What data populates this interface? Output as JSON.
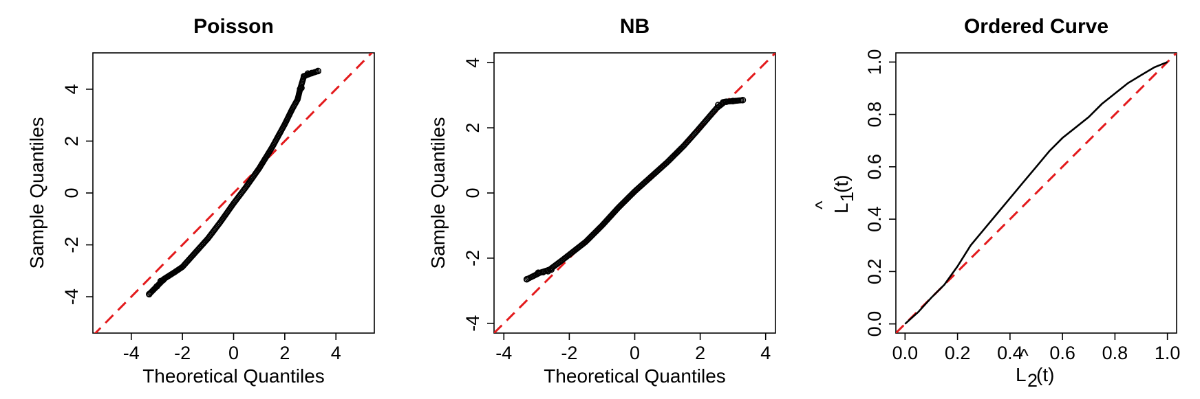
{
  "chart_data": [
    {
      "type": "scatter",
      "title": "Poisson",
      "xlabel": "Theoretical Quantiles",
      "ylabel": "Sample Quantiles",
      "xlim": [
        -5.5,
        5.5
      ],
      "ylim": [
        -5.4,
        5.4
      ],
      "xticks": [
        -4,
        -2,
        0,
        2,
        4
      ],
      "yticks": [
        -4,
        -2,
        0,
        2,
        4
      ],
      "xtick_labels": [
        "-4",
        "-2",
        "0",
        "2",
        "4"
      ],
      "ytick_labels": [
        "-4",
        "-2",
        "0",
        "2",
        "4"
      ],
      "reference_line": {
        "type": "identity",
        "color": "#e31a1c",
        "style": "dashed"
      },
      "qq_curve": [
        [
          -3.3,
          -3.9
        ],
        [
          -3.0,
          -3.6
        ],
        [
          -2.7,
          -3.3
        ],
        [
          -2.3,
          -3.05
        ],
        [
          -2.0,
          -2.85
        ],
        [
          -1.5,
          -2.3
        ],
        [
          -1.0,
          -1.75
        ],
        [
          -0.5,
          -1.1
        ],
        [
          0.0,
          -0.4
        ],
        [
          0.5,
          0.25
        ],
        [
          1.0,
          0.95
        ],
        [
          1.5,
          1.75
        ],
        [
          2.0,
          2.65
        ],
        [
          2.3,
          3.25
        ],
        [
          2.5,
          3.6
        ],
        [
          2.6,
          4.0
        ],
        [
          2.75,
          4.5
        ],
        [
          3.0,
          4.6
        ],
        [
          3.3,
          4.7
        ]
      ],
      "outlier_points": [
        [
          -3.3,
          -3.9
        ],
        [
          -3.0,
          -3.6
        ],
        [
          -2.85,
          -3.4
        ],
        [
          -2.75,
          -3.35
        ],
        [
          2.6,
          4.0
        ],
        [
          2.65,
          4.05
        ],
        [
          2.75,
          4.5
        ],
        [
          2.9,
          4.6
        ],
        [
          3.05,
          4.62
        ],
        [
          3.3,
          4.7
        ]
      ]
    },
    {
      "type": "scatter",
      "title": "NB",
      "xlabel": "Theoretical Quantiles",
      "ylabel": "Sample Quantiles",
      "xlim": [
        -4.3,
        4.3
      ],
      "ylim": [
        -4.3,
        4.3
      ],
      "xticks": [
        -4,
        -2,
        0,
        2,
        4
      ],
      "yticks": [
        -4,
        -2,
        0,
        2,
        4
      ],
      "xtick_labels": [
        "-4",
        "-2",
        "0",
        "2",
        "4"
      ],
      "ytick_labels": [
        "-4",
        "-2",
        "0",
        "2",
        "4"
      ],
      "reference_line": {
        "type": "identity",
        "color": "#e31a1c",
        "style": "dashed"
      },
      "qq_curve": [
        [
          -3.3,
          -2.65
        ],
        [
          -2.9,
          -2.45
        ],
        [
          -2.6,
          -2.35
        ],
        [
          -2.2,
          -2.05
        ],
        [
          -1.5,
          -1.5
        ],
        [
          -1.0,
          -1.0
        ],
        [
          -0.5,
          -0.45
        ],
        [
          0.0,
          0.05
        ],
        [
          0.5,
          0.5
        ],
        [
          1.0,
          0.95
        ],
        [
          1.5,
          1.45
        ],
        [
          1.9,
          1.9
        ],
        [
          2.2,
          2.25
        ],
        [
          2.5,
          2.6
        ],
        [
          2.75,
          2.8
        ],
        [
          3.0,
          2.82
        ],
        [
          3.3,
          2.85
        ]
      ],
      "outlier_points": [
        [
          -3.3,
          -2.65
        ],
        [
          -2.95,
          -2.45
        ],
        [
          -2.8,
          -2.43
        ],
        [
          -2.65,
          -2.4
        ],
        [
          -2.55,
          -2.35
        ],
        [
          2.55,
          2.7
        ],
        [
          2.7,
          2.78
        ],
        [
          2.8,
          2.8
        ],
        [
          3.0,
          2.82
        ],
        [
          3.3,
          2.85
        ]
      ]
    },
    {
      "type": "line",
      "title": "Ordered Curve",
      "xlabel": "L2(t)",
      "ylabel": "L1(t)",
      "xlabel_base": "L",
      "xlabel_sub": "2",
      "xlabel_hat": "^",
      "xlabel_suffix": "(t)",
      "ylabel_base": "L",
      "ylabel_sub": "1",
      "ylabel_hat": "^",
      "ylabel_suffix": "(t)",
      "xlim": [
        -0.035,
        1.035
      ],
      "ylim": [
        -0.035,
        1.035
      ],
      "xticks": [
        0.0,
        0.2,
        0.4,
        0.6,
        0.8,
        1.0
      ],
      "yticks": [
        0.0,
        0.2,
        0.4,
        0.6,
        0.8,
        1.0
      ],
      "xtick_labels": [
        "0.0",
        "0.2",
        "0.4",
        "0.6",
        "0.8",
        "1.0"
      ],
      "ytick_labels": [
        "0.0",
        "0.2",
        "0.4",
        "0.6",
        "0.8",
        "1.0"
      ],
      "reference_line": {
        "type": "identity",
        "color": "#e31a1c",
        "style": "dashed"
      },
      "series": [
        {
          "x": [
            0.0,
            0.05,
            0.1,
            0.15,
            0.2,
            0.25,
            0.3,
            0.35,
            0.4,
            0.45,
            0.5,
            0.55,
            0.6,
            0.65,
            0.7,
            0.75,
            0.8,
            0.85,
            0.9,
            0.95,
            1.0
          ],
          "values": [
            0.0,
            0.045,
            0.1,
            0.15,
            0.22,
            0.3,
            0.36,
            0.42,
            0.48,
            0.54,
            0.6,
            0.66,
            0.71,
            0.75,
            0.79,
            0.84,
            0.88,
            0.92,
            0.95,
            0.98,
            1.0
          ]
        }
      ]
    }
  ]
}
